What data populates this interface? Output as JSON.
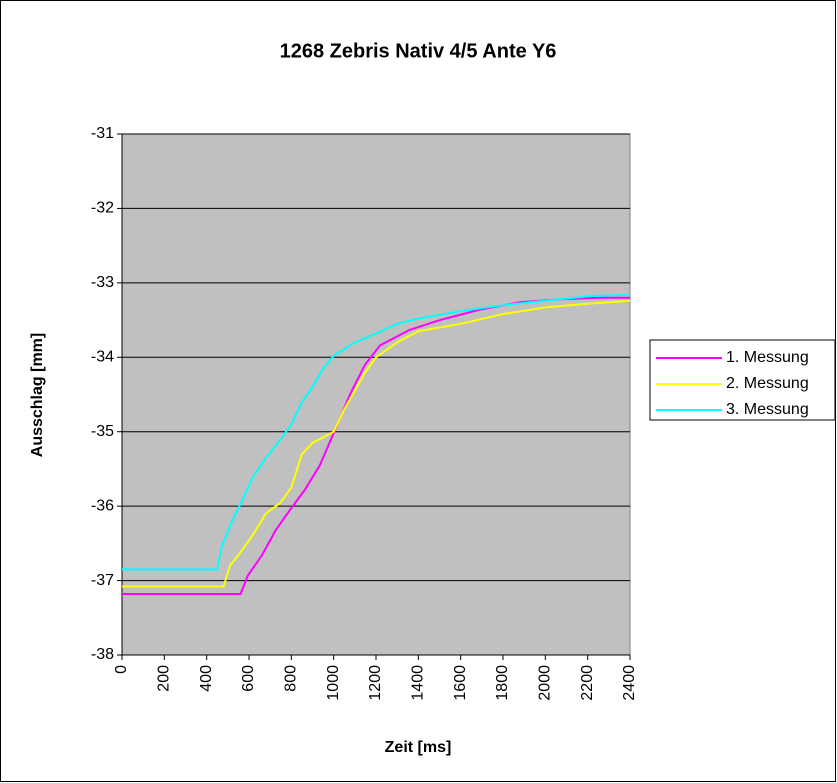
{
  "chart_data": {
    "type": "line",
    "title": "1268 Zebris Nativ 4/5 Ante Y6",
    "x_label": "Zeit [ms]",
    "y_label": "Ausschlag [mm]",
    "xlim": [
      0,
      2400
    ],
    "xticks": [
      0,
      200,
      400,
      600,
      800,
      1000,
      1200,
      1400,
      1600,
      1800,
      2000,
      2200,
      2400
    ],
    "ylim": [
      -38,
      -31
    ],
    "yticks": [
      -38,
      -37,
      -36,
      -35,
      -34,
      -33,
      -32,
      -31
    ],
    "grid": true,
    "legend": "right",
    "series": [
      {
        "name": "1. Messung",
        "color": "#ff00ff",
        "x": [
          0,
          560,
          595,
          661,
          727,
          794,
          864,
          935,
          1006,
          1077,
          1148,
          1219,
          1360,
          1502,
          1691,
          1880,
          2069,
          2258,
          2400
        ],
        "values": [
          -37.18,
          -37.18,
          -36.93,
          -36.66,
          -36.32,
          -36.05,
          -35.78,
          -35.45,
          -34.98,
          -34.5,
          -34.1,
          -33.84,
          -33.63,
          -33.5,
          -33.36,
          -33.26,
          -33.22,
          -33.2,
          -33.2
        ]
      },
      {
        "name": "2. Messung",
        "color": "#ffff00",
        "x": [
          0,
          480,
          510,
          560,
          620,
          680,
          750,
          800,
          850,
          900,
          1000,
          1050,
          1150,
          1200,
          1300,
          1400,
          1600,
          1800,
          2000,
          2200,
          2400
        ],
        "values": [
          -37.08,
          -37.08,
          -36.8,
          -36.62,
          -36.38,
          -36.1,
          -35.95,
          -35.75,
          -35.3,
          -35.15,
          -35.0,
          -34.7,
          -34.2,
          -34.0,
          -33.8,
          -33.65,
          -33.55,
          -33.42,
          -33.33,
          -33.28,
          -33.24
        ]
      },
      {
        "name": "3. Messung",
        "color": "#00ffff",
        "x": [
          0,
          450,
          470,
          520,
          580,
          620,
          680,
          750,
          800,
          850,
          900,
          950,
          1000,
          1100,
          1200,
          1300,
          1400,
          1600,
          1800,
          2000,
          2200,
          2400
        ],
        "values": [
          -36.85,
          -36.85,
          -36.55,
          -36.2,
          -35.85,
          -35.6,
          -35.35,
          -35.1,
          -34.9,
          -34.6,
          -34.4,
          -34.15,
          -33.98,
          -33.8,
          -33.68,
          -33.55,
          -33.48,
          -33.38,
          -33.3,
          -33.24,
          -33.18,
          -33.16
        ]
      }
    ]
  }
}
